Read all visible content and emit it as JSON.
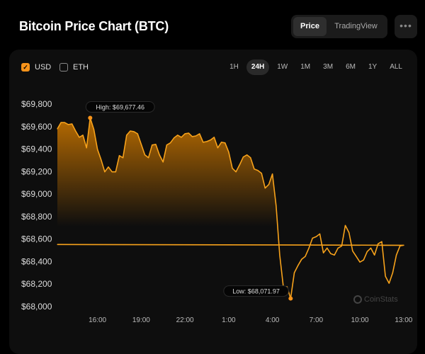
{
  "header": {
    "title": "Bitcoin Price Chart (BTC)",
    "tabs": [
      "Price",
      "TradingView"
    ],
    "active_tab": "Price",
    "more_icon": "ellipsis-icon"
  },
  "toggles": [
    {
      "label": "USD",
      "checked": true
    },
    {
      "label": "ETH",
      "checked": false
    }
  ],
  "timeframes": [
    "1H",
    "24H",
    "1W",
    "1M",
    "3M",
    "6M",
    "1Y",
    "ALL"
  ],
  "active_timeframe": "24H",
  "watermark": "CoinStats",
  "colors": {
    "accent": "#f7931a",
    "line": "#f7a21b",
    "background": "#0e0e0e"
  },
  "chart_data": {
    "type": "area",
    "title": "",
    "xlabel": "",
    "ylabel": "",
    "ylim": [
      68000,
      69800
    ],
    "y_ticks": [
      "$68,000",
      "$68,200",
      "$68,400",
      "$68,600",
      "$68,800",
      "$69,000",
      "$69,200",
      "$69,400",
      "$69,600",
      "$69,800"
    ],
    "y_tick_values": [
      68000,
      68200,
      68400,
      68600,
      68800,
      69000,
      69200,
      69400,
      69600,
      69800
    ],
    "x_ticks": [
      "16:00",
      "19:00",
      "22:00",
      "1:00",
      "4:00",
      "7:00",
      "10:00",
      "13:00"
    ],
    "grid": false,
    "legend": "none",
    "annotations": {
      "high": {
        "label": "High: $69,677.46",
        "time": "15:30",
        "value": 69677.46
      },
      "low": {
        "label": "Low: $68,071.97",
        "time": "05:15",
        "value": 68071.97
      }
    },
    "x": [
      "13:15",
      "13:30",
      "13:45",
      "14:00",
      "14:15",
      "14:30",
      "14:45",
      "15:00",
      "15:15",
      "15:30",
      "15:45",
      "16:00",
      "16:15",
      "16:30",
      "16:45",
      "17:00",
      "17:15",
      "17:30",
      "17:45",
      "18:00",
      "18:15",
      "18:30",
      "18:45",
      "19:00",
      "19:15",
      "19:30",
      "19:45",
      "20:00",
      "20:15",
      "20:30",
      "20:45",
      "21:00",
      "21:15",
      "21:30",
      "21:45",
      "22:00",
      "22:15",
      "22:30",
      "22:45",
      "23:00",
      "23:15",
      "23:30",
      "23:45",
      "00:00",
      "00:15",
      "00:30",
      "00:45",
      "01:00",
      "01:15",
      "01:30",
      "01:45",
      "02:00",
      "02:15",
      "02:30",
      "02:45",
      "03:00",
      "03:15",
      "03:30",
      "03:45",
      "04:00",
      "04:15",
      "04:30",
      "04:45",
      "05:00",
      "05:15",
      "05:30",
      "05:45",
      "06:00",
      "06:15",
      "06:30",
      "06:45",
      "07:00",
      "07:15",
      "07:30",
      "07:45",
      "08:00",
      "08:15",
      "08:30",
      "08:45",
      "09:00",
      "09:15",
      "09:30",
      "09:45",
      "10:00",
      "10:15",
      "10:30",
      "10:45",
      "11:00",
      "11:15",
      "11:30",
      "11:45",
      "12:00",
      "12:15",
      "12:30",
      "12:45",
      "13:00",
      "13:15"
    ],
    "values": [
      69580,
      69636,
      69636,
      69618,
      69624,
      69561,
      69505,
      69524,
      69411,
      69677,
      69574,
      69398,
      69304,
      69198,
      69241,
      69198,
      69198,
      69342,
      69323,
      69524,
      69561,
      69555,
      69536,
      69442,
      69348,
      69323,
      69436,
      69442,
      69348,
      69285,
      69436,
      69455,
      69499,
      69524,
      69505,
      69536,
      69542,
      69511,
      69517,
      69536,
      69461,
      69467,
      69480,
      69505,
      69411,
      69461,
      69455,
      69373,
      69229,
      69198,
      69260,
      69329,
      69348,
      69323,
      69223,
      69210,
      69185,
      69053,
      69085,
      69179,
      68897,
      68458,
      68176,
      68176,
      68072,
      68301,
      68364,
      68420,
      68445,
      68520,
      68608,
      68621,
      68646,
      68477,
      68520,
      68470,
      68458,
      68520,
      68539,
      68721,
      68658,
      68495,
      68445,
      68395,
      68414,
      68489,
      68520,
      68458,
      68558,
      68577,
      68270,
      68207,
      68301,
      68458,
      68539,
      68545,
      68552
    ]
  }
}
